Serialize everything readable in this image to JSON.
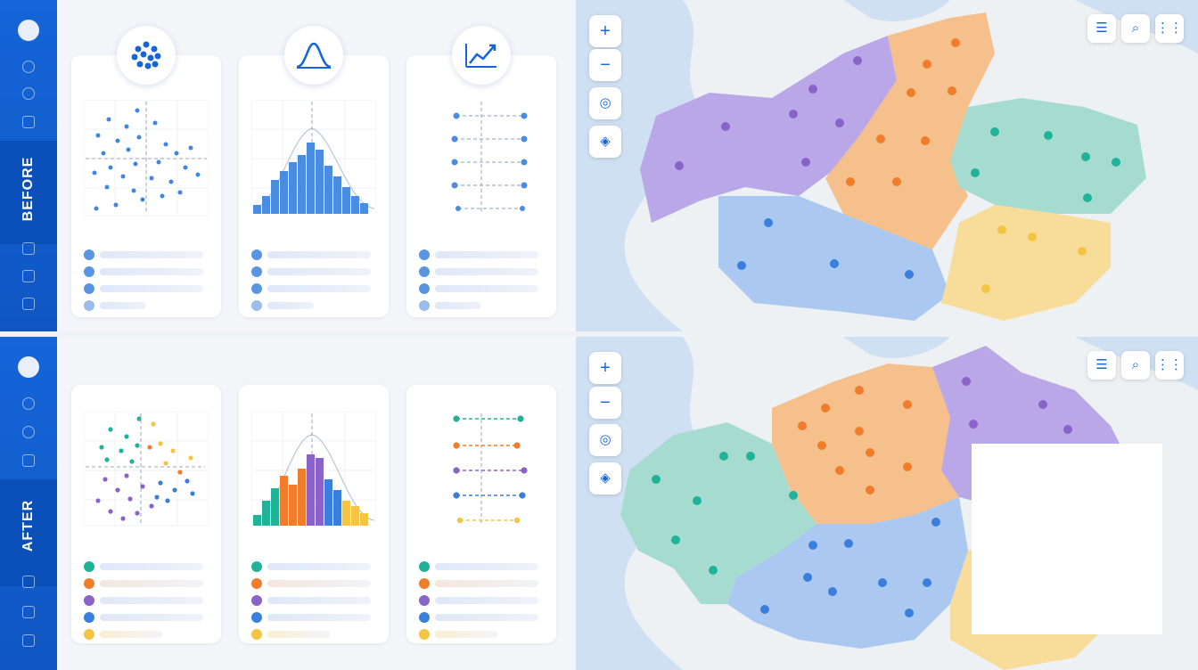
{
  "before": {
    "label": "BEFORE"
  },
  "after": {
    "label": "AFTER"
  },
  "icons": {
    "sidebar": [
      "avatar",
      "pie-chart-icon",
      "user-icon",
      "report-icon",
      "inbox-icon",
      "checklist-icon",
      "list-icon"
    ],
    "cards": [
      "scatter-icon",
      "bell-curve-icon",
      "trend-line-icon"
    ],
    "map_controls": [
      "zoom-in-icon",
      "zoom-out-icon",
      "locate-icon",
      "layers-icon"
    ],
    "map_tools": [
      "filter-icon",
      "search-icon",
      "grid-icon"
    ]
  },
  "colors": {
    "brand": "#1565d8",
    "before_series": "#4a8de0",
    "after_series": [
      "#21b39a",
      "#ef7d2b",
      "#8a63c9",
      "#3a7fdc",
      "#f4c542"
    ],
    "regions_before": [
      "#b9a7e8",
      "#f6c08d",
      "#a6dcd0",
      "#aac8f0",
      "#f8dc9a"
    ],
    "regions_after": [
      "#a6dcd0",
      "#f6c08d",
      "#b9a7e8",
      "#aac8f0",
      "#f8dc9a"
    ]
  }
}
